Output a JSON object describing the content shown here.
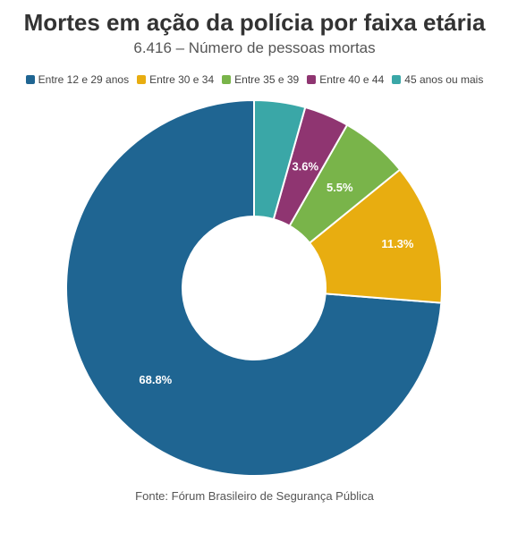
{
  "chart_data": {
    "type": "pie",
    "title": "Mortes em ação da polícia por faixa etária",
    "subtitle": "6.416 – Número de pessoas mortas",
    "legend_position": "top",
    "slices": [
      {
        "label": "Entre 12 e 29 anos",
        "value": 68.8,
        "display": "68.8%",
        "color": "#1f6592"
      },
      {
        "label": "Entre 30 e 34",
        "value": 11.3,
        "display": "11.3%",
        "color": "#e8ad10"
      },
      {
        "label": "Entre 35 e 39",
        "value": 5.5,
        "display": "5.5%",
        "color": "#79b44a"
      },
      {
        "label": "Entre 40 e 44",
        "value": 3.6,
        "display": "3.6%",
        "color": "#8f3571"
      },
      {
        "label": "45 anos ou mais",
        "value": 4.1,
        "display": "",
        "color": "#3aa7a7"
      }
    ],
    "source": "Fonte: Fórum Brasileiro de Segurança Pública"
  }
}
